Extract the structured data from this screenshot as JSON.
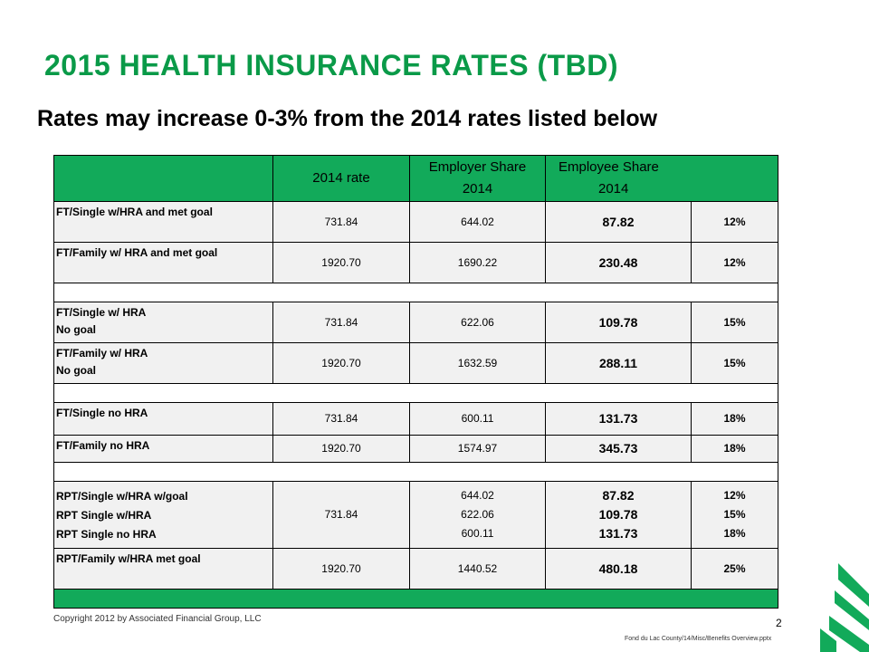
{
  "title": "2015 HEALTH INSURANCE RATES (TBD)",
  "subtitle": "Rates may increase 0-3% from the 2014 rates listed below",
  "table": {
    "headers": {
      "rate": "2014 rate",
      "employer_line1": "Employer Share",
      "employer_line2": "2014",
      "employee_line1": "Employee Share",
      "employee_line2": "2014"
    },
    "rows": [
      {
        "label": "FT/Single w/HRA and met goal",
        "rate": "731.84",
        "employer": "644.02",
        "employee": "87.82",
        "pct": "12%"
      },
      {
        "label": "FT/Family w/ HRA and met goal",
        "rate": "1920.70",
        "employer": "1690.22",
        "employee": "230.48",
        "pct": "12%"
      },
      {
        "label1": "FT/Single w/ HRA",
        "label2": "No goal",
        "rate": "731.84",
        "employer": "622.06",
        "employee": "109.78",
        "pct": "15%"
      },
      {
        "label1": "FT/Family w/ HRA",
        "label2": "No goal",
        "rate": "1920.70",
        "employer": "1632.59",
        "employee": "288.11",
        "pct": "15%"
      },
      {
        "label": "FT/Single no HRA",
        "rate": "731.84",
        "employer": "600.11",
        "employee": "131.73",
        "pct": "18%"
      },
      {
        "label": "FT/Family no HRA",
        "rate": "1920.70",
        "employer": "1574.97",
        "employee": "345.73",
        "pct": "18%"
      },
      {
        "labels": [
          "RPT/Single w/HRA w/goal",
          "RPT Single w/HRA",
          "RPT Single no HRA"
        ],
        "rate": "731.84",
        "employer": [
          "644.02",
          "622.06",
          "600.11"
        ],
        "employee": [
          "87.82",
          "109.78",
          "131.73"
        ],
        "pct": [
          "12%",
          "15%",
          "18%"
        ]
      },
      {
        "label": "RPT/Family w/HRA met goal",
        "rate": "1920.70",
        "employer": "1440.52",
        "employee": "480.18",
        "pct": "25%"
      }
    ]
  },
  "footer": {
    "copyright": "Copyright 2012 by Associated Financial Group, LLC",
    "page_number": "2",
    "file_path": "Fond du Lac County/14/Misc/Benefits  Overview.pptx"
  },
  "colors": {
    "accent_green": "#0a9a48",
    "header_green": "#12aa5a",
    "row_gray": "#f1f1f1"
  },
  "icons": {
    "logo": "green-tree-logo-icon"
  }
}
